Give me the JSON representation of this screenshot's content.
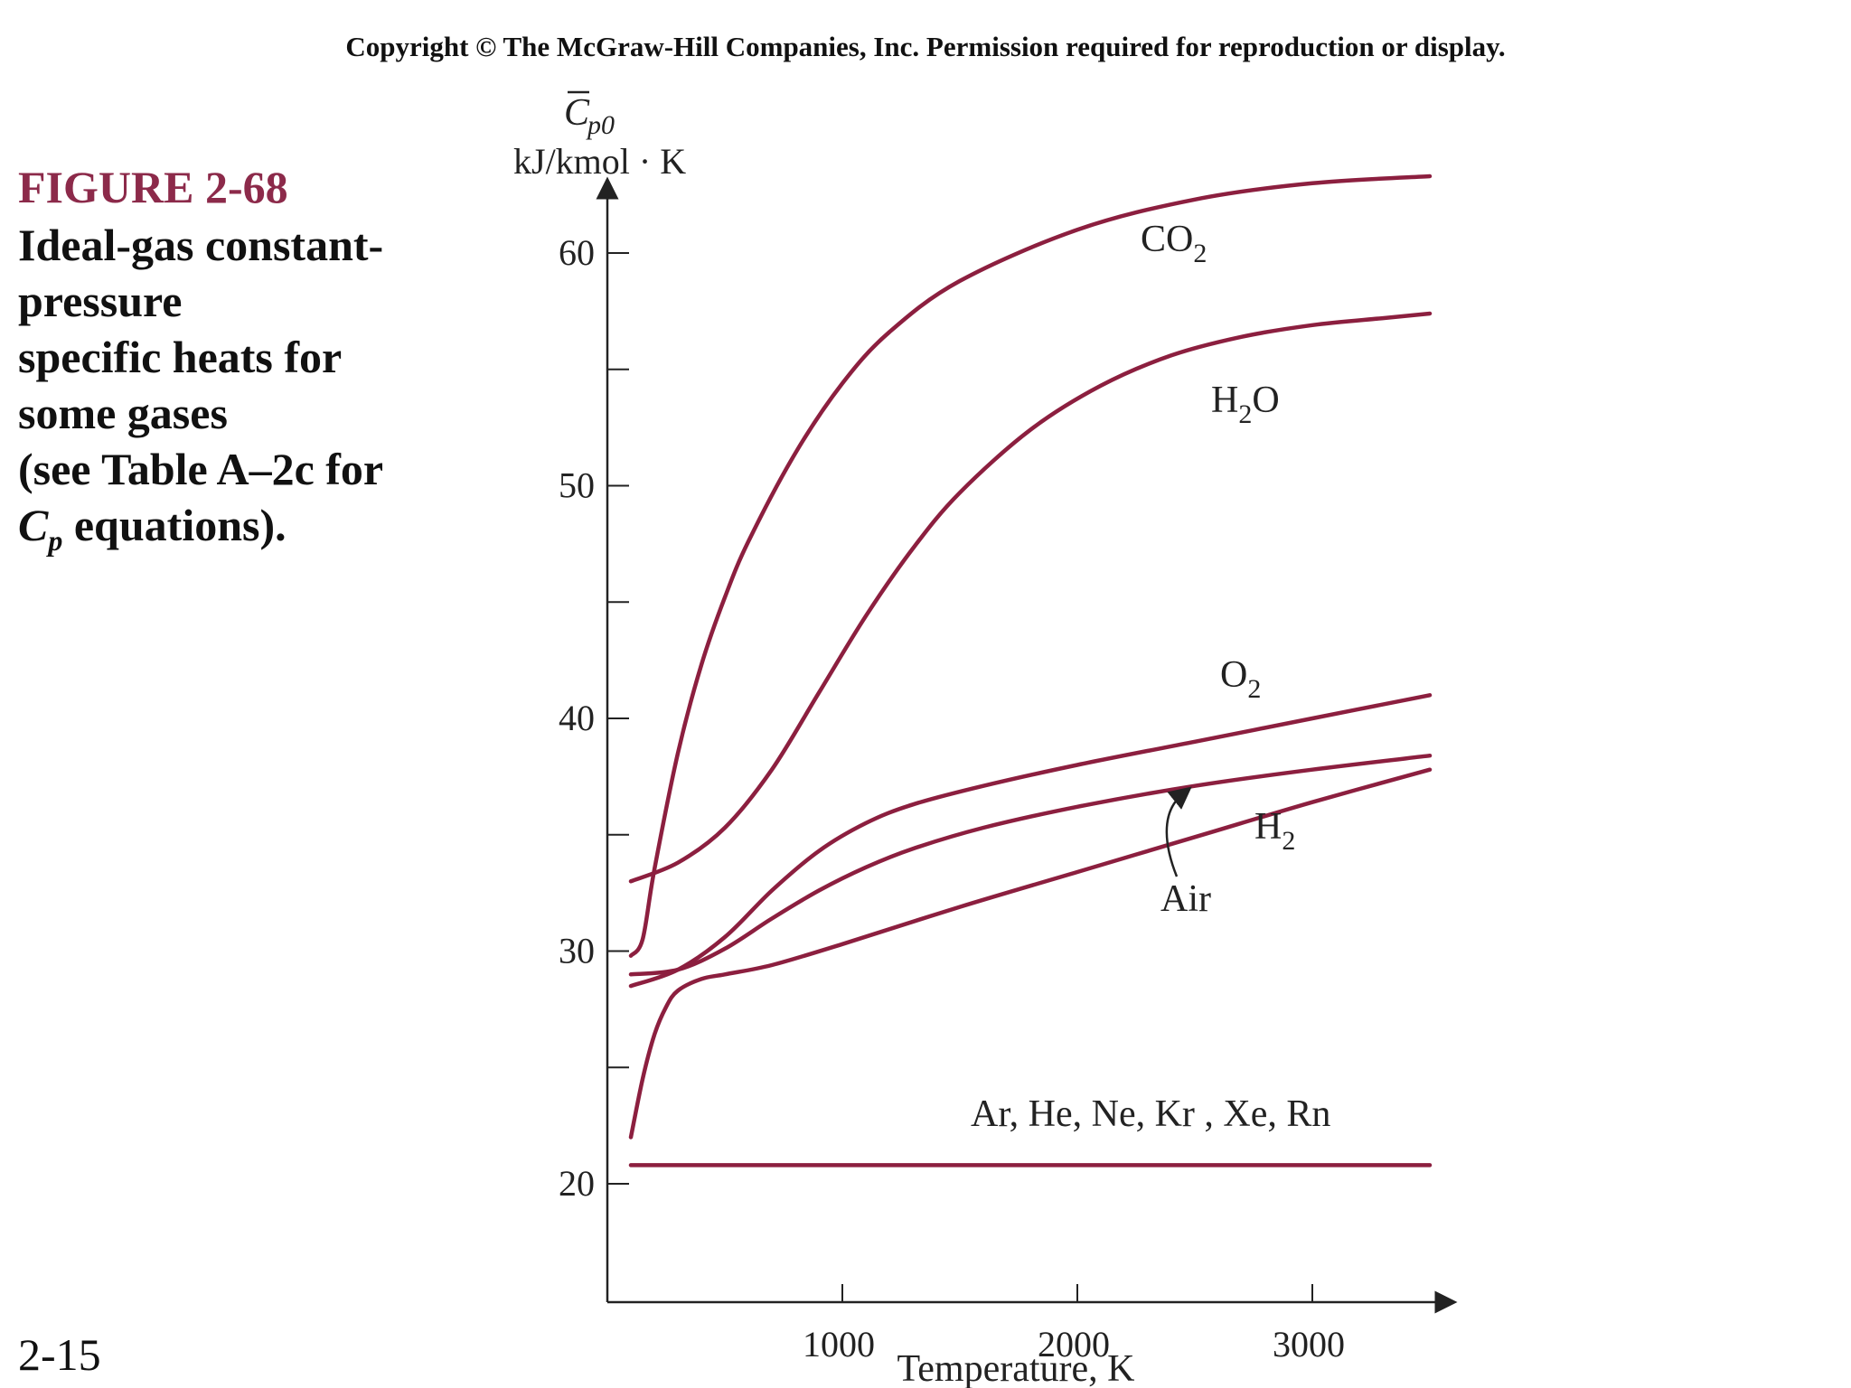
{
  "copyright": "Copyright © The McGraw-Hill Companies, Inc. Permission required for reproduction or display.",
  "figure": {
    "label": "FIGURE 2-68",
    "caption_lines": [
      "Ideal-gas constant-",
      "pressure",
      "specific heats for",
      "some gases",
      "(see Table A–2c for"
    ],
    "caption_last_symbol": "C",
    "caption_last_subscript": "p",
    "caption_last_rest": " equations)."
  },
  "page_number": "2-15",
  "colors": {
    "curve": "#8c1f3f",
    "axis": "#222222",
    "label_accent": "#8c2a4a"
  },
  "chart_data": {
    "type": "line",
    "title": "",
    "ylabel_symbol": "C",
    "ylabel_subscript": "p0",
    "ylabel_units": "kJ/kmol · K",
    "xlabel": "Temperature, K",
    "xlim": [
      0,
      3600
    ],
    "ylim": [
      15,
      63
    ],
    "xticks": [
      1000,
      2000,
      3000
    ],
    "yticks": [
      20,
      25,
      30,
      35,
      40,
      45,
      50,
      55,
      60
    ],
    "ytick_labels": [
      "20",
      "",
      "30",
      "",
      "40",
      "",
      "50",
      "",
      "60"
    ],
    "grid": false,
    "series": [
      {
        "name": "CO2",
        "label_main": "CO",
        "label_sub": "2",
        "x": [
          100,
          150,
          200,
          300,
          400,
          500,
          600,
          800,
          1000,
          1200,
          1500,
          2000,
          2500,
          3000,
          3500
        ],
        "y": [
          29.8,
          30.5,
          33.5,
          38.5,
          42.3,
          45.2,
          47.6,
          51.4,
          54.4,
          56.6,
          58.8,
          61.0,
          62.3,
          63.0,
          63.3
        ]
      },
      {
        "name": "H2O",
        "label_main": "H",
        "label_sub": "2",
        "label_tail": "O",
        "x": [
          100,
          300,
          500,
          700,
          900,
          1100,
          1300,
          1500,
          1800,
          2100,
          2400,
          2700,
          3000,
          3300,
          3500
        ],
        "y": [
          33.0,
          33.8,
          35.3,
          37.8,
          41.1,
          44.4,
          47.3,
          49.7,
          52.4,
          54.3,
          55.6,
          56.4,
          56.9,
          57.2,
          57.4
        ]
      },
      {
        "name": "O2",
        "label_main": "O",
        "label_sub": "2",
        "x": [
          100,
          300,
          500,
          700,
          900,
          1100,
          1300,
          1600,
          2000,
          2500,
          3000,
          3500
        ],
        "y": [
          28.5,
          29.2,
          30.6,
          32.6,
          34.3,
          35.5,
          36.3,
          37.1,
          38.0,
          39.0,
          40.0,
          41.0
        ]
      },
      {
        "name": "Air",
        "label_main": "Air",
        "x": [
          100,
          300,
          500,
          700,
          900,
          1100,
          1300,
          1600,
          2000,
          2500,
          3000,
          3500
        ],
        "y": [
          29.0,
          29.2,
          30.1,
          31.4,
          32.6,
          33.6,
          34.4,
          35.3,
          36.2,
          37.1,
          37.8,
          38.4
        ]
      },
      {
        "name": "H2",
        "label_main": "H",
        "label_sub": "2",
        "x": [
          100,
          150,
          200,
          250,
          300,
          400,
          500,
          700,
          1000,
          1500,
          2000,
          2500,
          3000,
          3500
        ],
        "y": [
          22.0,
          24.5,
          26.4,
          27.6,
          28.3,
          28.8,
          29.0,
          29.4,
          30.3,
          31.9,
          33.4,
          34.9,
          36.4,
          37.8
        ]
      },
      {
        "name": "Ar, He, Ne, Kr , Xe, Rn",
        "label_main": "Ar, He, Ne, Kr , Xe, Rn",
        "x": [
          100,
          3500
        ],
        "y": [
          20.8,
          20.8
        ]
      }
    ]
  }
}
